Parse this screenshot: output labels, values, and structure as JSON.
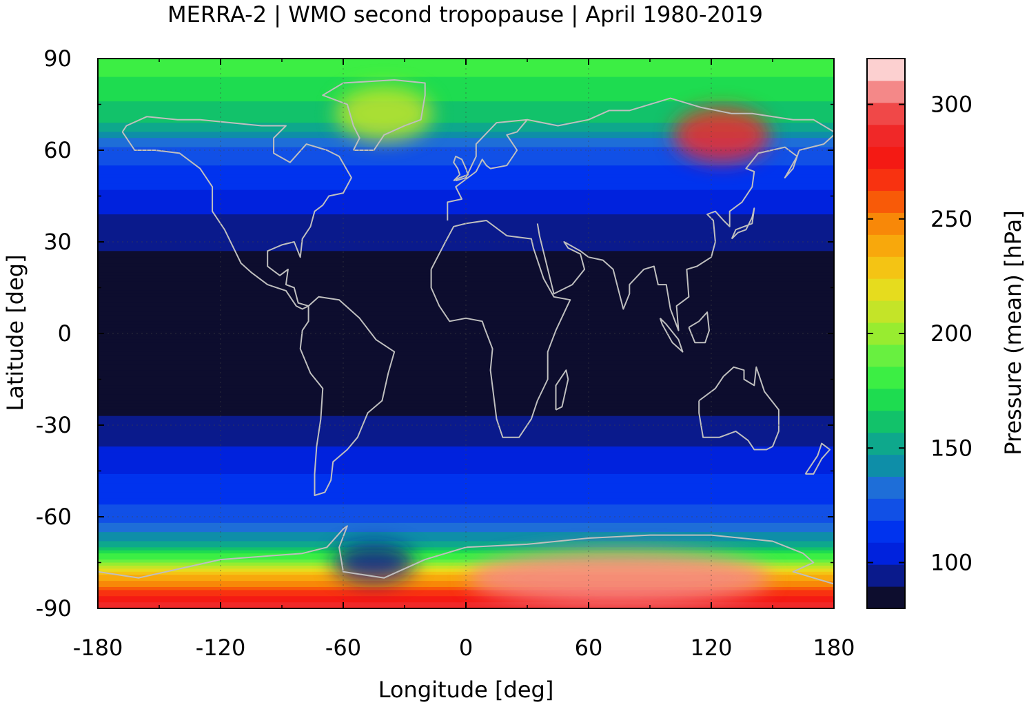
{
  "chart_data": {
    "type": "heatmap",
    "title": "MERRA-2 | WMO second tropopause | April 1980-2019",
    "xlabel": "Longitude [deg]",
    "ylabel": "Latitude [deg]",
    "colorbar_label": "Pressure (mean) [hPa]",
    "xlim": [
      -180,
      180
    ],
    "ylim": [
      -90,
      90
    ],
    "xticks": [
      -180,
      -120,
      -60,
      0,
      60,
      120,
      180
    ],
    "yticks": [
      90,
      60,
      30,
      0,
      -30,
      -60,
      -90
    ],
    "colorbar_range": [
      80,
      320
    ],
    "colorbar_ticks": [
      100,
      150,
      200,
      250,
      300
    ],
    "grid": true,
    "latitude_profile": [
      {
        "lat": 90,
        "value": 185
      },
      {
        "lat": 80,
        "value": 170
      },
      {
        "lat": 70,
        "value": 160
      },
      {
        "lat": 60,
        "value": 125
      },
      {
        "lat": 50,
        "value": 112
      },
      {
        "lat": 40,
        "value": 100
      },
      {
        "lat": 30,
        "value": 92
      },
      {
        "lat": 20,
        "value": 84
      },
      {
        "lat": 0,
        "value": 82
      },
      {
        "lat": -20,
        "value": 84
      },
      {
        "lat": -30,
        "value": 92
      },
      {
        "lat": -40,
        "value": 103
      },
      {
        "lat": -50,
        "value": 112
      },
      {
        "lat": -60,
        "value": 122
      },
      {
        "lat": -70,
        "value": 155
      },
      {
        "lat": -80,
        "value": 240
      },
      {
        "lat": -90,
        "value": 290
      }
    ],
    "regional_features": [
      {
        "lon": 125,
        "lat": 65,
        "value": 290
      },
      {
        "lon": 75,
        "lat": -80,
        "value": 310
      },
      {
        "lon": -40,
        "lat": 72,
        "value": 205
      },
      {
        "lon": -45,
        "lat": -75,
        "value": 95
      }
    ]
  },
  "colors": {
    "colormap": [
      "#0d0d2e",
      "#0a1a8c",
      "#0022dd",
      "#0033ee",
      "#1150e6",
      "#1e6ed8",
      "#0e8ea8",
      "#0ea88c",
      "#12c26a",
      "#1edc50",
      "#3cee44",
      "#68f040",
      "#98ec30",
      "#c4e428",
      "#e6dc1e",
      "#f4c414",
      "#f8a80c",
      "#f88808",
      "#f85a08",
      "#f83210",
      "#f41a14",
      "#f02828",
      "#f04848",
      "#f48888",
      "#fcd0d0"
    ],
    "coastline": "#bfbfbf",
    "grid": "#444444"
  }
}
